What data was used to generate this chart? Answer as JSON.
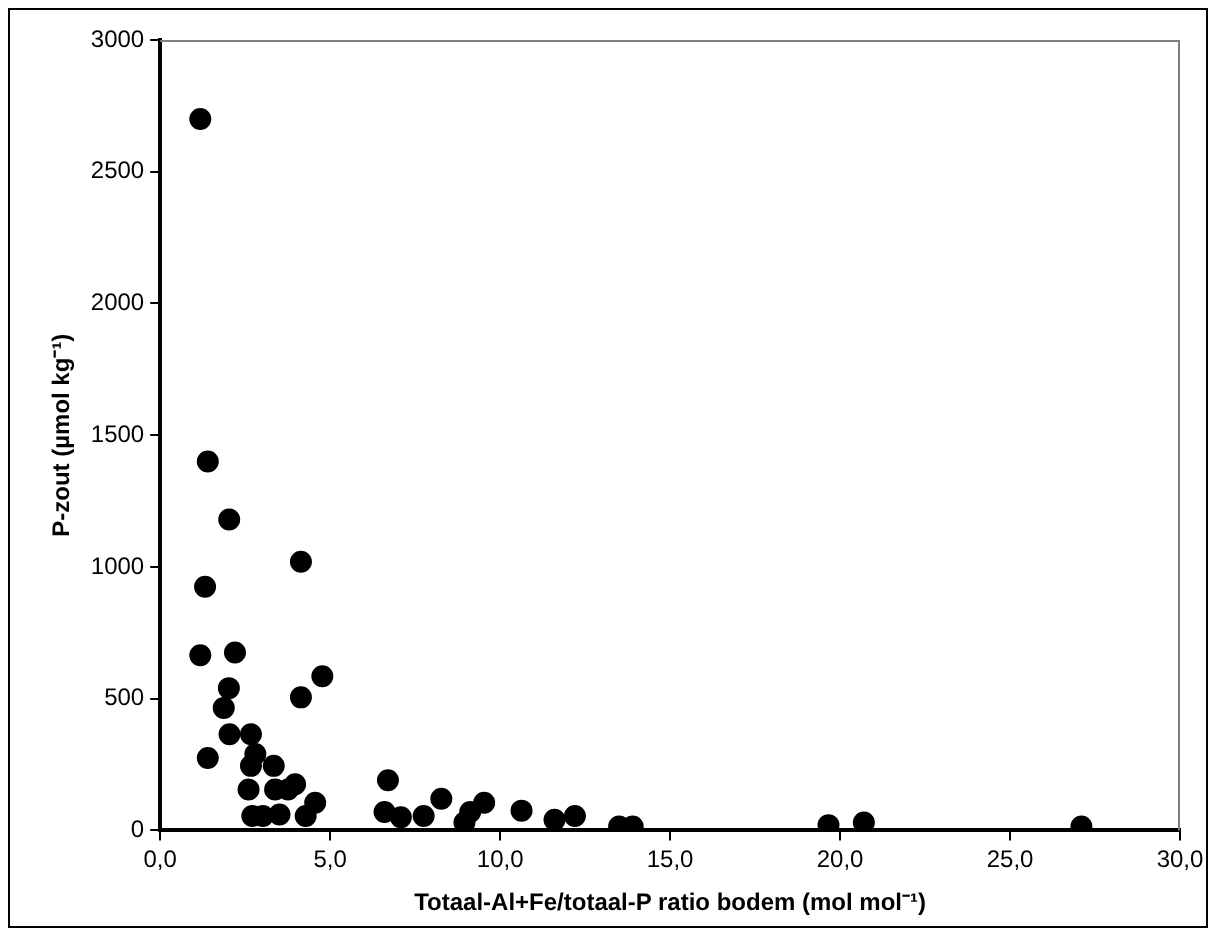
{
  "chart_data": {
    "type": "scatter",
    "xlabel": "Totaal-Al+Fe/totaal-P ratio bodem (mol mol⁻¹)",
    "ylabel": "P-zout (µmol kg⁻¹)",
    "x": [
      1.18,
      1.4,
      2.03,
      4.14,
      1.32,
      1.18,
      2.2,
      4.77,
      2.02,
      4.14,
      1.87,
      2.04,
      2.67,
      1.4,
      2.8,
      2.67,
      3.34,
      2.6,
      3.38,
      3.97,
      3.76,
      4.56,
      4.28,
      2.71,
      3.02,
      3.51,
      6.7,
      6.6,
      7.08,
      7.75,
      8.27,
      8.95,
      9.12,
      9.53,
      10.63,
      11.6,
      12.2,
      13.5,
      13.9,
      19.66,
      20.7,
      27.1
    ],
    "values": [
      2700,
      1400,
      1180,
      1020,
      925,
      665,
      675,
      585,
      540,
      505,
      465,
      365,
      365,
      275,
      290,
      245,
      245,
      155,
      155,
      175,
      155,
      105,
      55,
      55,
      55,
      60,
      190,
      70,
      50,
      55,
      120,
      30,
      70,
      105,
      75,
      40,
      55,
      15,
      15,
      20,
      30,
      15
    ],
    "color": "#000000",
    "marker": "circle",
    "xlim": [
      0,
      30
    ],
    "xticks": [
      {
        "value": 0,
        "label": "0,0"
      },
      {
        "value": 5,
        "label": "5,0"
      },
      {
        "value": 10,
        "label": "10,0"
      },
      {
        "value": 15,
        "label": "15,0"
      },
      {
        "value": 20,
        "label": "20,0"
      },
      {
        "value": 25,
        "label": "25,0"
      },
      {
        "value": 30,
        "label": "30,0"
      }
    ],
    "ylim": [
      0,
      3000
    ],
    "yticks": [
      0,
      500,
      1000,
      1500,
      2000,
      2500,
      3000
    ],
    "grid": false,
    "legend": false
  }
}
